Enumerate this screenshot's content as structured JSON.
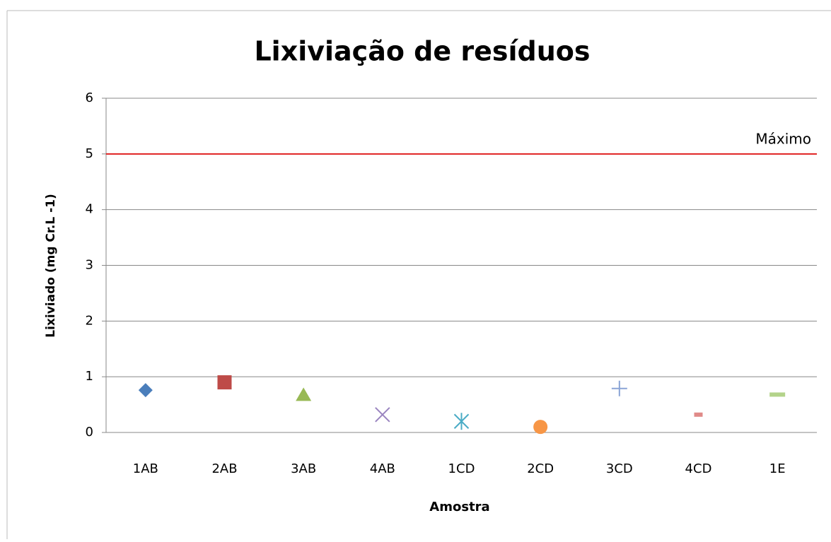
{
  "chart_data": {
    "type": "scatter",
    "title": "Lixiviação de resíduos",
    "x_label": "Amostra",
    "y_label": "Lixiviado  (mg Cr.L -1)",
    "categories": [
      "1AB",
      "2AB",
      "3AB",
      "4AB",
      "1CD",
      "2CD",
      "3CD",
      "4CD",
      "1E"
    ],
    "values": [
      0.76,
      0.9,
      0.68,
      0.32,
      0.2,
      0.1,
      0.79,
      0.32,
      0.68
    ],
    "colors": [
      "#4a7ebb",
      "#be4b48",
      "#98b954",
      "#9a85c0",
      "#4bacc6",
      "#f79646",
      "#8aa4d6",
      "#e08a88",
      "#b3d38a"
    ],
    "markers": [
      "diamond",
      "square",
      "triangle",
      "x",
      "star",
      "circle",
      "plus",
      "dash",
      "dash"
    ],
    "ylim": [
      0,
      6
    ],
    "yticks": [
      0,
      1,
      2,
      3,
      4,
      5,
      6
    ],
    "grid": true,
    "reference_line": {
      "value": 5,
      "label": "Máximo",
      "color": "#e02020"
    }
  }
}
